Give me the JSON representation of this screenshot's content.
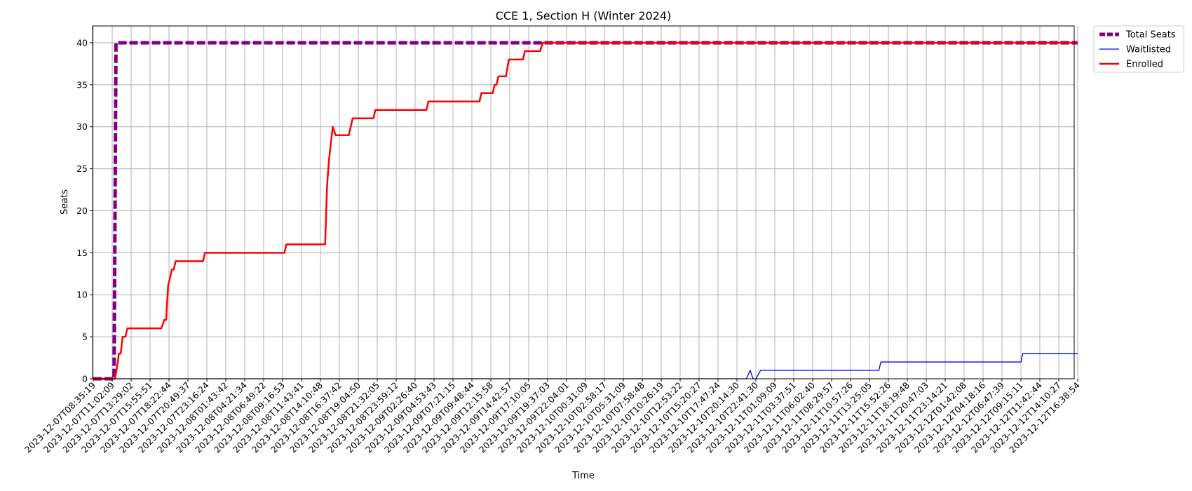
{
  "chart_data": {
    "type": "line",
    "title": "CCE 1, Section H (Winter 2024)",
    "xlabel": "Time",
    "ylabel": "Seats",
    "ylim": [
      0,
      42
    ],
    "yticks": [
      0,
      5,
      10,
      15,
      20,
      25,
      30,
      35,
      40
    ],
    "grid": true,
    "legend_position": "outside-top-right",
    "categories": [
      "2023-12-07T08:35:19",
      "2023-12-07T11:02:09",
      "2023-12-07T13:29:02",
      "2023-12-07T15:55:51",
      "2023-12-07T18:22:44",
      "2023-12-07T20:49:37",
      "2023-12-07T23:16:24",
      "2023-12-08T01:43:42",
      "2023-12-08T04:21:34",
      "2023-12-08T06:49:22",
      "2023-12-08T09:16:53",
      "2023-12-08T11:43:41",
      "2023-12-08T14:10:48",
      "2023-12-08T16:37:42",
      "2023-12-08T19:04:50",
      "2023-12-08T21:32:05",
      "2023-12-08T23:59:12",
      "2023-12-09T02:26:40",
      "2023-12-09T04:53:43",
      "2023-12-09T07:21:15",
      "2023-12-09T09:48:44",
      "2023-12-09T12:15:58",
      "2023-12-09T14:42:57",
      "2023-12-09T17:10:05",
      "2023-12-09T19:37:03",
      "2023-12-09T22:04:01",
      "2023-12-10T00:31:09",
      "2023-12-10T02:58:17",
      "2023-12-10T05:31:09",
      "2023-12-10T07:58:48",
      "2023-12-10T10:26:19",
      "2023-12-10T12:53:22",
      "2023-12-10T15:20:27",
      "2023-12-10T17:47:24",
      "2023-12-10T20:14:30",
      "2023-12-10T22:41:30",
      "2023-12-11T01:09:09",
      "2023-12-11T03:37:51",
      "2023-12-11T06:02:40",
      "2023-12-11T08:29:57",
      "2023-12-11T10:57:26",
      "2023-12-11T13:25:05",
      "2023-12-11T15:52:26",
      "2023-12-11T18:19:48",
      "2023-12-11T20:47:03",
      "2023-12-11T23:14:21",
      "2023-12-12T01:42:08",
      "2023-12-12T04:18:16",
      "2023-12-12T06:47:39",
      "2023-12-12T09:15:11",
      "2023-12-12T11:42:44",
      "2023-12-12T14:10:27",
      "2023-12-12T16:38:54"
    ],
    "series": [
      {
        "name": "Total Seats",
        "color": "#800080",
        "style": "dashed-thick",
        "points": [
          [
            0,
            0
          ],
          [
            1.1,
            0
          ],
          [
            1.2,
            40
          ],
          [
            52,
            40
          ]
        ]
      },
      {
        "name": "Waitlisted",
        "color": "#0000ff",
        "style": "solid-thin",
        "points": [
          [
            0,
            0
          ],
          [
            34.5,
            0
          ],
          [
            34.7,
            1
          ],
          [
            34.85,
            0
          ],
          [
            35.0,
            0
          ],
          [
            35.25,
            1
          ],
          [
            41.5,
            1
          ],
          [
            41.6,
            2
          ],
          [
            49.0,
            2
          ],
          [
            49.1,
            3
          ],
          [
            52,
            3
          ]
        ]
      },
      {
        "name": "Enrolled",
        "color": "#ff0000",
        "style": "solid",
        "points": [
          [
            0,
            0
          ],
          [
            1.15,
            0
          ],
          [
            1.3,
            2
          ],
          [
            1.35,
            3
          ],
          [
            1.45,
            3
          ],
          [
            1.55,
            5
          ],
          [
            1.7,
            5
          ],
          [
            1.8,
            6
          ],
          [
            3.6,
            6
          ],
          [
            3.75,
            7
          ],
          [
            3.85,
            7
          ],
          [
            3.95,
            11
          ],
          [
            4.05,
            12
          ],
          [
            4.15,
            13
          ],
          [
            4.25,
            13
          ],
          [
            4.35,
            14
          ],
          [
            5.8,
            14
          ],
          [
            5.9,
            15
          ],
          [
            10.1,
            15
          ],
          [
            10.2,
            16
          ],
          [
            12.25,
            16
          ],
          [
            12.35,
            23
          ],
          [
            12.45,
            26
          ],
          [
            12.55,
            28
          ],
          [
            12.65,
            30
          ],
          [
            12.8,
            29
          ],
          [
            13.5,
            29
          ],
          [
            13.7,
            31
          ],
          [
            14.8,
            31
          ],
          [
            14.9,
            32
          ],
          [
            17.6,
            32
          ],
          [
            17.7,
            33
          ],
          [
            20.4,
            33
          ],
          [
            20.5,
            34
          ],
          [
            21.1,
            34
          ],
          [
            21.2,
            35
          ],
          [
            21.3,
            35
          ],
          [
            21.4,
            36
          ],
          [
            21.8,
            36
          ],
          [
            21.95,
            38
          ],
          [
            22.7,
            38
          ],
          [
            22.8,
            39
          ],
          [
            23.6,
            39
          ],
          [
            23.75,
            40
          ],
          [
            52,
            40
          ]
        ]
      }
    ]
  }
}
